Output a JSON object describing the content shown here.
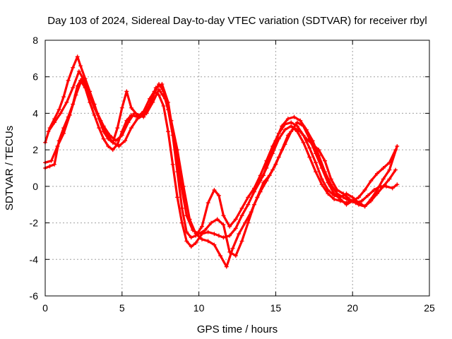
{
  "chart_data": {
    "type": "scatter",
    "title": "Day 103 of 2024, Sidereal Day-to-day VTEC variation (SDTVAR) for receiver rbyl",
    "xlabel": "GPS time / hours",
    "ylabel": "SDTVAR / TECUs",
    "xlim": [
      0,
      25
    ],
    "ylim": [
      -6,
      8
    ],
    "xticks": [
      0,
      5,
      10,
      15,
      20,
      25
    ],
    "yticks": [
      -6,
      -4,
      -2,
      0,
      2,
      4,
      6,
      8
    ],
    "grid": true,
    "marker": "plus",
    "color": "#ff0000",
    "series": [
      {
        "x": [
          0,
          0.3,
          0.6,
          0.9,
          1.2,
          1.5,
          1.8,
          2.1,
          2.3,
          2.6,
          2.9,
          3.2,
          3.5,
          3.8,
          4.1,
          4.4,
          4.7,
          5.0,
          5.3,
          5.6,
          6.0,
          6.4,
          6.8,
          7.1,
          7.4,
          7.7,
          8.0,
          8.3,
          8.6,
          8.9,
          9.2,
          9.5,
          9.8,
          10.2,
          10.6,
          11.0,
          11.3,
          11.6,
          12.0,
          12.4,
          12.8,
          13.2,
          13.6,
          14.0,
          14.4,
          14.8,
          15.2,
          15.6,
          16.0,
          16.4,
          16.8,
          17.2,
          17.6,
          18.0,
          18.4,
          18.8,
          19.2,
          19.6,
          20.0,
          20.4,
          20.8,
          21.2,
          21.6,
          22.0,
          22.4,
          22.8
        ],
        "y": [
          1.0,
          1.1,
          1.2,
          2.5,
          3.2,
          3.8,
          4.5,
          5.5,
          5.8,
          5.4,
          4.6,
          3.9,
          3.2,
          2.6,
          2.2,
          2.0,
          2.3,
          3.0,
          3.6,
          3.9,
          3.8,
          4.1,
          4.8,
          5.2,
          5.0,
          4.4,
          3.0,
          1.2,
          -0.6,
          -2.0,
          -3.0,
          -3.3,
          -3.1,
          -2.6,
          -2.5,
          -2.6,
          -2.7,
          -2.8,
          -2.7,
          -2.3,
          -1.6,
          -1.0,
          -0.3,
          0.3,
          1.0,
          1.8,
          2.6,
          3.1,
          3.3,
          3.0,
          2.4,
          1.6,
          0.8,
          0.1,
          -0.4,
          -0.7,
          -0.8,
          -0.9,
          -0.8,
          -0.6,
          -0.2,
          0.3,
          0.7,
          1.0,
          1.3,
          2.0
        ]
      },
      {
        "x": [
          0,
          0.3,
          0.6,
          0.9,
          1.2,
          1.5,
          1.8,
          2.1,
          2.3,
          2.6,
          2.9,
          3.2,
          3.5,
          3.8,
          4.1,
          4.4,
          4.7,
          5.0,
          5.3,
          5.6,
          6.0,
          6.4,
          6.8,
          7.1,
          7.4,
          7.7,
          8.0,
          8.3,
          8.6,
          8.9,
          9.2,
          9.5,
          9.8,
          10.2,
          10.6,
          11.0,
          11.3,
          11.6,
          12.0,
          12.4,
          12.8,
          13.2,
          13.6,
          14.0,
          14.4,
          14.8,
          15.2,
          15.6,
          16.0,
          16.4,
          16.8,
          17.2,
          17.6,
          18.0,
          18.4,
          18.8,
          19.2,
          19.6,
          20.0,
          20.4,
          20.8,
          21.2,
          21.6,
          22.0,
          22.4,
          22.8
        ],
        "y": [
          2.4,
          3.2,
          3.7,
          4.2,
          4.9,
          5.8,
          6.5,
          7.1,
          6.6,
          5.9,
          5.2,
          4.5,
          3.7,
          3.0,
          2.6,
          2.4,
          3.2,
          4.3,
          5.2,
          4.3,
          3.9,
          3.8,
          4.4,
          5.1,
          5.6,
          5.2,
          4.2,
          2.8,
          0.8,
          -1.2,
          -2.5,
          -2.8,
          -2.7,
          -2.2,
          -0.9,
          -0.2,
          -0.5,
          -1.6,
          -2.2,
          -1.8,
          -1.2,
          -0.6,
          -0.1,
          0.6,
          1.4,
          2.2,
          2.9,
          3.4,
          3.5,
          3.3,
          2.8,
          2.1,
          1.3,
          0.4,
          -0.2,
          -0.5,
          -0.6,
          -0.4,
          -0.6,
          -0.9,
          -1.1,
          -0.8,
          -0.4,
          0.0,
          0.4,
          0.9
        ]
      },
      {
        "x": [
          0.2,
          0.6,
          1.0,
          1.4,
          1.8,
          2.2,
          2.6,
          3.0,
          3.4,
          3.8,
          4.2,
          4.6,
          5.0,
          5.4,
          5.8,
          6.2,
          6.6,
          7.0,
          7.4,
          7.8,
          8.2,
          8.6,
          9.0,
          9.4,
          9.8,
          10.2,
          10.6,
          11.0,
          11.4,
          11.8,
          12.2,
          12.6,
          13.0,
          13.4,
          13.8,
          14.2,
          14.6,
          15.0,
          15.4,
          15.8,
          16.2,
          16.6,
          17.0,
          17.4,
          17.8,
          18.2,
          18.6,
          19.0,
          19.4,
          19.8,
          20.2,
          20.6,
          21.0,
          21.4,
          21.8,
          22.2,
          22.6,
          22.9
        ],
        "y": [
          3.0,
          3.5,
          4.0,
          4.6,
          5.4,
          6.3,
          5.7,
          4.8,
          4.0,
          3.3,
          2.8,
          2.5,
          2.8,
          3.5,
          4.0,
          3.9,
          4.0,
          4.6,
          5.3,
          4.8,
          3.6,
          2.0,
          0.0,
          -1.8,
          -2.6,
          -2.9,
          -3.0,
          -3.2,
          -3.8,
          -4.4,
          -3.4,
          -2.6,
          -2.0,
          -1.4,
          -0.6,
          0.2,
          0.6,
          1.2,
          2.0,
          2.8,
          3.2,
          3.0,
          2.6,
          2.3,
          2.0,
          1.4,
          0.4,
          -0.2,
          -0.4,
          -0.7,
          -0.9,
          -0.8,
          -0.5,
          -0.2,
          0.0,
          0.0,
          -0.1,
          0.1
        ]
      },
      {
        "x": [
          0,
          0.4,
          0.8,
          1.2,
          1.6,
          2.0,
          2.4,
          2.8,
          3.2,
          3.6,
          4.0,
          4.4,
          4.8,
          5.2,
          5.6,
          6.0,
          6.4,
          6.8,
          7.2,
          7.6,
          8.0,
          8.4,
          8.8,
          9.2,
          9.6,
          10.0,
          10.4,
          10.8,
          11.2,
          11.6,
          12.0,
          12.4,
          12.8,
          13.2,
          13.6,
          14.0,
          14.4,
          14.8,
          15.2,
          15.6,
          16.0,
          16.4,
          16.8,
          17.2,
          17.6,
          18.0,
          18.4,
          18.8,
          19.2,
          19.6,
          20.0,
          20.4,
          20.8,
          21.2,
          21.6,
          22.0,
          22.4,
          22.9
        ],
        "y": [
          1.3,
          1.4,
          2.2,
          2.9,
          3.9,
          5.0,
          5.9,
          5.2,
          4.3,
          3.6,
          2.9,
          2.4,
          2.2,
          2.5,
          3.2,
          3.7,
          3.9,
          4.5,
          5.4,
          5.6,
          4.6,
          2.5,
          0.3,
          -1.6,
          -2.4,
          -2.6,
          -2.4,
          -2.0,
          -1.8,
          -2.1,
          -3.6,
          -3.8,
          -3.0,
          -2.0,
          -1.0,
          -0.3,
          0.3,
          0.9,
          1.6,
          2.3,
          3.0,
          3.5,
          3.3,
          2.6,
          1.8,
          1.0,
          0.2,
          -0.4,
          -0.7,
          -1.0,
          -0.8,
          -1.0,
          -1.1,
          -0.7,
          -0.2,
          0.4,
          0.9,
          2.2
        ]
      },
      {
        "x": [
          13.8,
          14.2,
          14.6,
          15.0,
          15.4,
          15.8,
          16.2,
          16.6,
          17.0,
          17.4,
          17.8,
          18.2,
          18.6,
          19.0,
          19.4,
          19.8,
          20.2,
          20.6
        ],
        "y": [
          0.1,
          0.6,
          1.6,
          2.5,
          3.3,
          3.7,
          3.8,
          3.6,
          3.1,
          2.5,
          1.7,
          0.8,
          0.1,
          -0.4,
          -0.6,
          -0.8,
          -0.9,
          -1.0
        ]
      }
    ]
  }
}
